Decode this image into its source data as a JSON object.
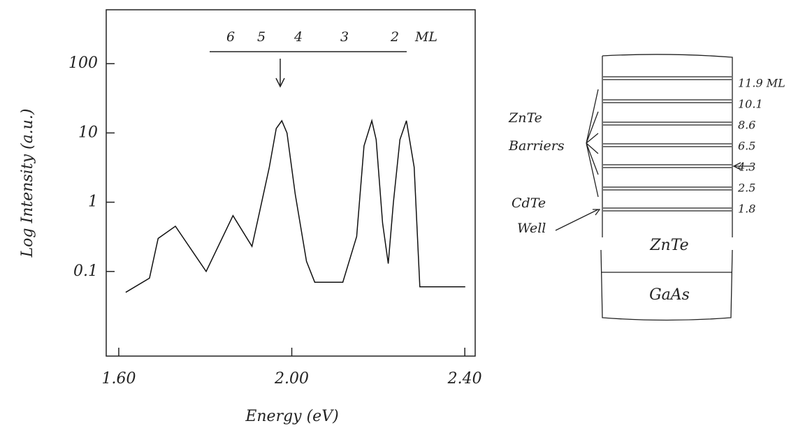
{
  "chart_data": {
    "type": "line",
    "x_label": "Energy (eV)",
    "y_label": "Log Intensity (a.u.)",
    "log_y": true,
    "color": "#111",
    "x": [
      1.616,
      1.671,
      1.691,
      1.731,
      1.802,
      1.864,
      1.908,
      1.927,
      1.948,
      1.964,
      1.977,
      1.989,
      2.008,
      2.034,
      2.053,
      2.118,
      2.15,
      2.167,
      2.185,
      2.195,
      2.21,
      2.223,
      2.235,
      2.25,
      2.265,
      2.283,
      2.296,
      2.401
    ],
    "values": [
      0.05,
      0.08,
      0.3,
      0.45,
      0.1,
      0.64,
      0.23,
      0.8,
      3.2,
      11.6,
      15,
      10,
      1.3,
      0.14,
      0.07,
      0.07,
      0.32,
      6.5,
      15,
      8,
      0.5,
      0.13,
      1,
      8,
      15,
      3.2,
      0.06,
      0.06
    ],
    "xlim": [
      1.571,
      2.424
    ],
    "ylim": [
      0.006,
      600
    ],
    "xticks": [
      {
        "value": 1.6,
        "label": "1.60"
      },
      {
        "value": 2.0,
        "label": "2.00"
      },
      {
        "value": 2.4,
        "label": "2.40"
      }
    ],
    "yticks": [
      100,
      10,
      1,
      0.1
    ],
    "ml_scale": [
      "6",
      "5",
      "4",
      "3",
      "2"
    ],
    "ml_unit": "ML"
  },
  "diagram": {
    "barriers_label": [
      "ZnTe",
      "Barriers"
    ],
    "well_label": [
      "CdTe",
      "Well"
    ],
    "buffer": "ZnTe",
    "substrate": "GaAs",
    "thicknesses": [
      "11.9 ML",
      "10.1",
      "8.6",
      "6.5",
      "4.3",
      "2.5",
      "1.8"
    ]
  }
}
